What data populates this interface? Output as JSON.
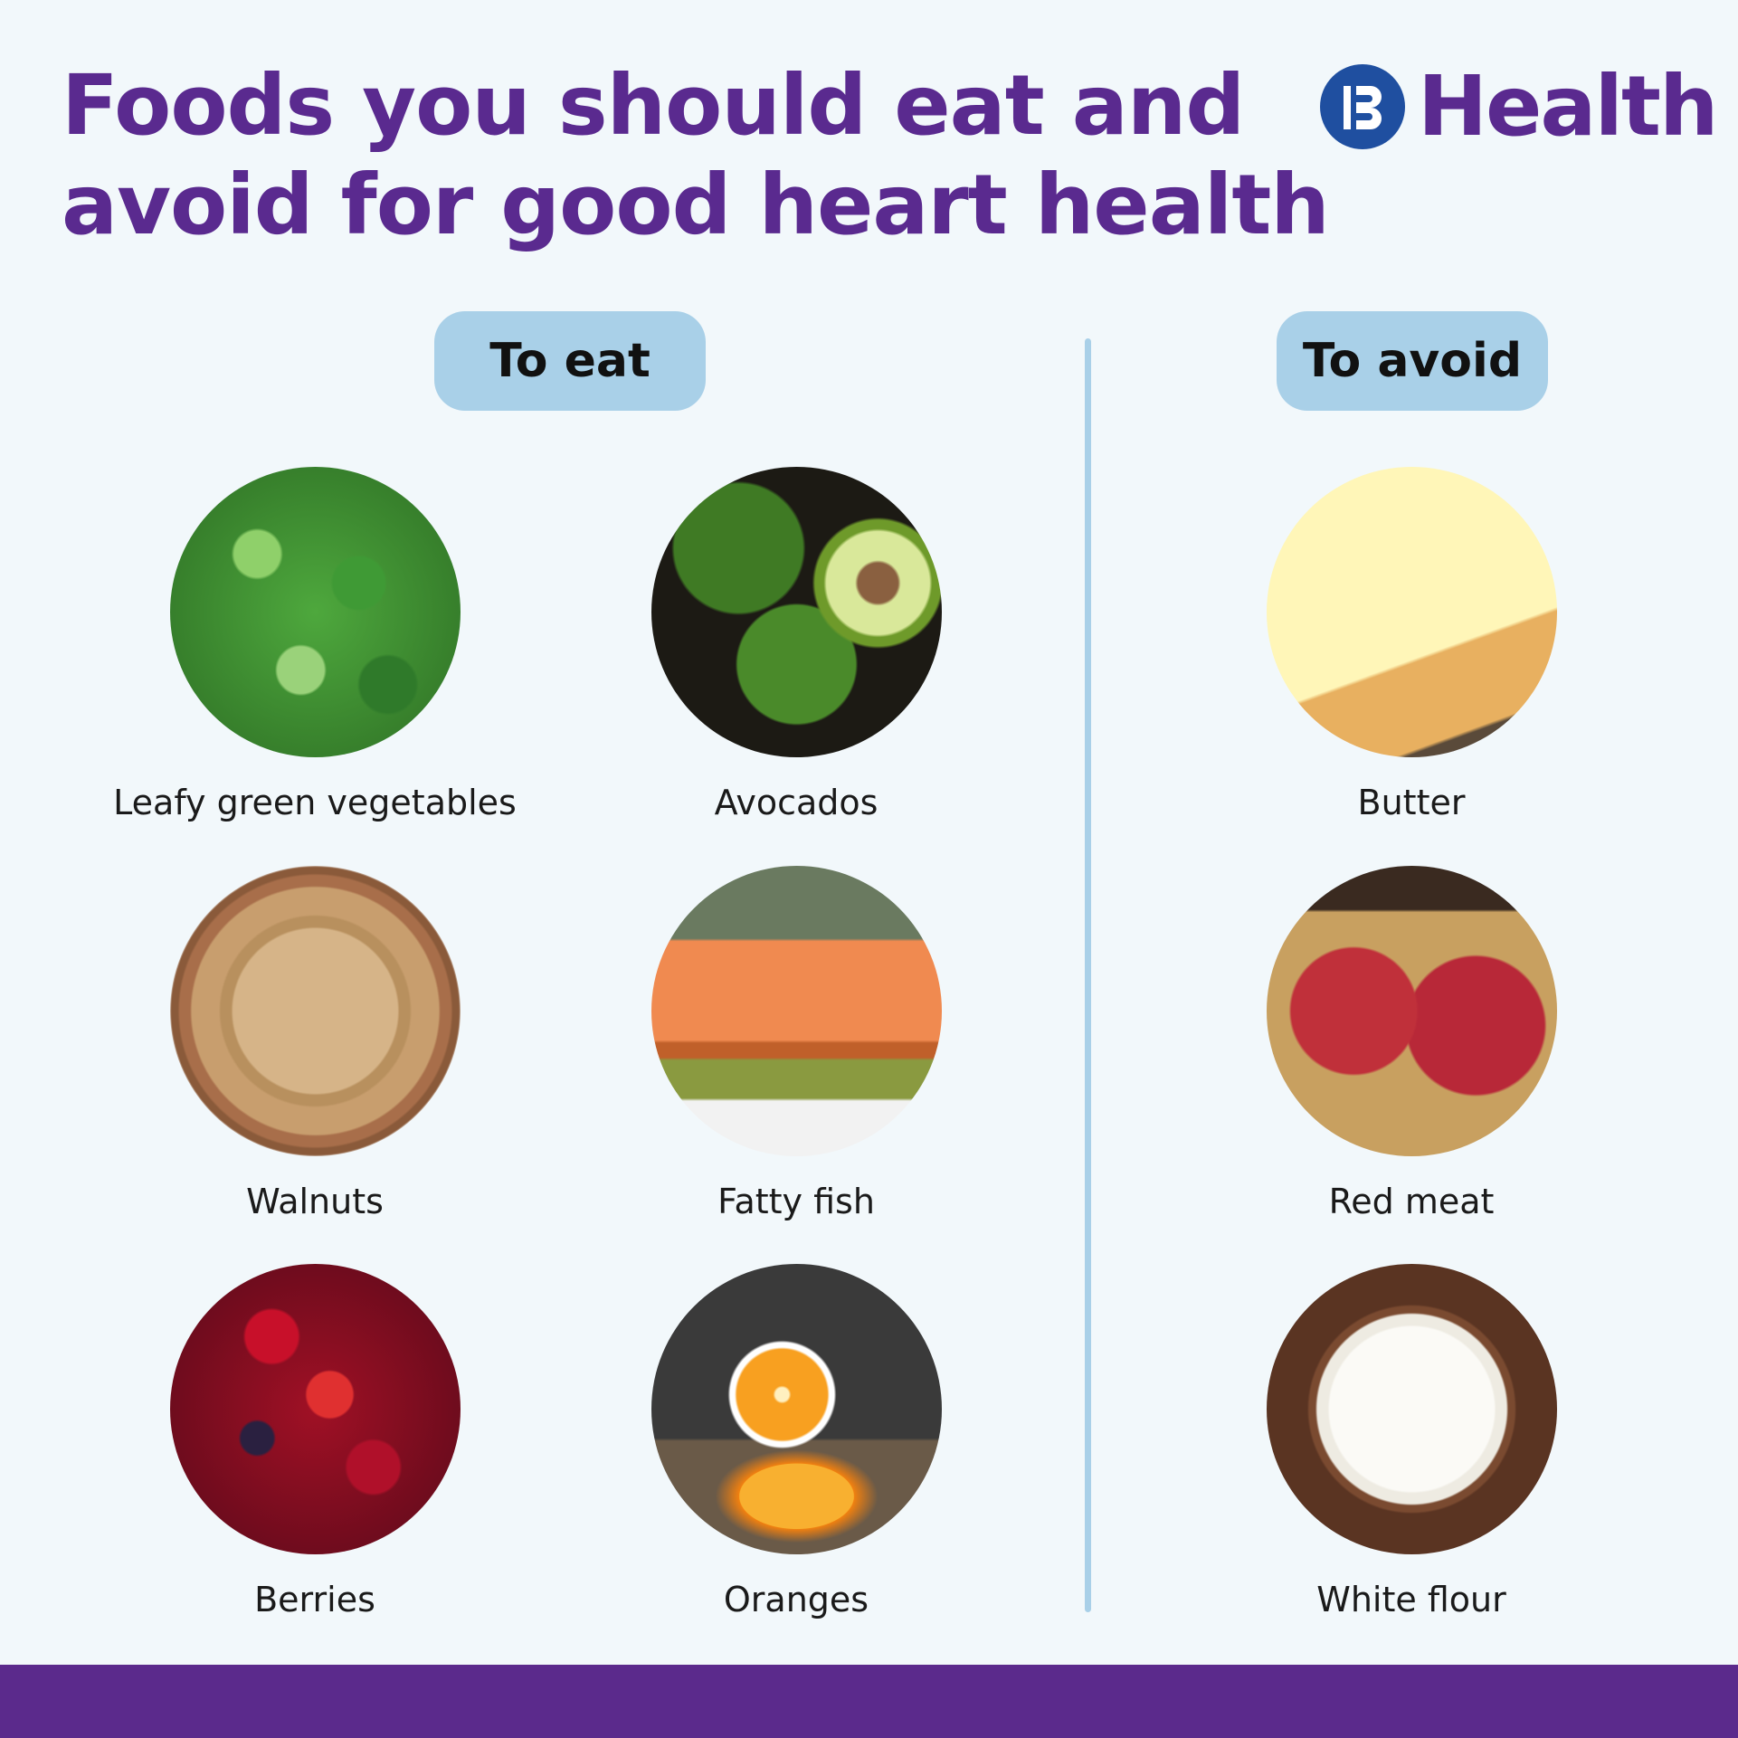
{
  "header": {
    "title_lines": [
      "Foods you should eat and",
      "avoid for good heart health"
    ],
    "logo": {
      "text": "Health",
      "mark_letter": "B",
      "mark_color": "#1f4fa0"
    }
  },
  "colors": {
    "title": "#5a2a8f",
    "pill": "#a9d0e8",
    "background": "#f2f8fb",
    "footer": "#5b2a8c"
  },
  "sections": {
    "eat": {
      "label": "To eat",
      "items": [
        {
          "label": "Leafy green vegetables",
          "image": "leafy-greens"
        },
        {
          "label": "Avocados",
          "image": "avocados"
        },
        {
          "label": "Walnuts",
          "image": "walnuts"
        },
        {
          "label": "Fatty fish",
          "image": "salmon"
        },
        {
          "label": "Berries",
          "image": "berries"
        },
        {
          "label": "Oranges",
          "image": "oranges"
        }
      ]
    },
    "avoid": {
      "label": "To avoid",
      "items": [
        {
          "label": "Butter",
          "image": "butter"
        },
        {
          "label": "Red meat",
          "image": "red-meat"
        },
        {
          "label": "White flour",
          "image": "white-flour"
        }
      ]
    }
  }
}
